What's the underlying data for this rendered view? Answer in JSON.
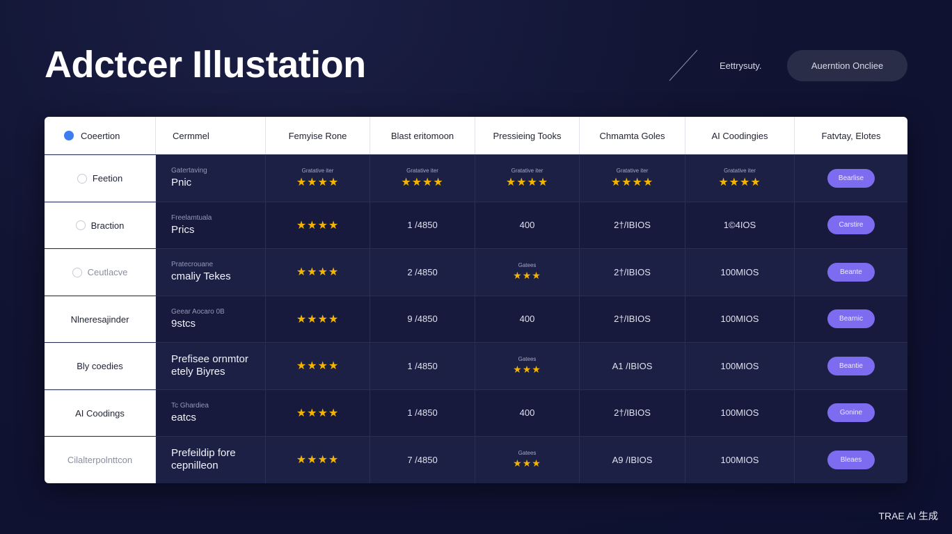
{
  "title": "Adctcer Illustation",
  "header": {
    "link_label": "Eettrysuty.",
    "button_label": "Auerntion Oncliee"
  },
  "table": {
    "columns": [
      "Coeertion",
      "Cermmel",
      "Femyise Rone",
      "Blast eritomoon",
      "Pressieing Tooks",
      "Chmamta Goles",
      "AI Coodingies",
      "Fatvtay, Elotes"
    ],
    "rows": [
      {
        "head": "Feetion",
        "name_small": "Gatertaving",
        "name_big": "Pnic",
        "c2_cap": "Gratative iter",
        "c2_stars": "★★★★",
        "c3_cap": "Gratative iter",
        "c3_stars": "★★★★",
        "c4_cap": "Gratative iter",
        "c4_stars": "★★★★",
        "c5_cap": "Gratative iter",
        "c5_stars": "★★★★",
        "c6_cap": "Gratative iter",
        "c6_stars": "★★★★",
        "action": "Bearlise"
      },
      {
        "head": "Braction",
        "name_small": "Freelamtuala",
        "name_big": "Prics",
        "c2_stars": "★★★★",
        "c3": "1 /4850",
        "c4": "400",
        "c5": "2†/IBIOS",
        "c6": "1©4IOS",
        "action": "Carstire"
      },
      {
        "head": "Ceutlacve",
        "name_small": "Pratecrouane",
        "name_big": "cmaliy Tekes",
        "c2_stars": "★★★★",
        "c3": "2 /4850",
        "c4_cap": "Gatees",
        "c4_stars": "★★★",
        "c5": "2†/IBIOS",
        "c6": "100MIOS",
        "action": "Beante"
      },
      {
        "head": "Nlneresajinder",
        "name_small": "Geear Aocaro 0B",
        "name_big": "9stcs",
        "c2_stars": "★★★★",
        "c3": "9 /4850",
        "c4": "400",
        "c5": "2†/IBIOS",
        "c6": "100MIOS",
        "action": "Bearnic"
      },
      {
        "head": "Bly coedies",
        "name_small": "",
        "name_big": "Prefisee ornmtor\netely Biyres",
        "c2_stars": "★★★★",
        "c3": "1 /4850",
        "c4_cap": "Gatees",
        "c4_stars": "★★★",
        "c5": "A1 /IBIOS",
        "c6": "100MIOS",
        "action": "Beantie"
      },
      {
        "head": "AI Coodings",
        "name_small": "Tc Ghardiea",
        "name_big": "eatcs",
        "c2_stars": "★★★★",
        "c3": "1 /4850",
        "c4": "400",
        "c5": "2†/IBIOS",
        "c6": "100MIOS",
        "action": "Gonine"
      },
      {
        "head": "Cilalterpolnttcon",
        "name_small": "",
        "name_big": "Prefeildip fore\ncepnilleon",
        "c2_stars": "★★★★",
        "c3": "7 /4850",
        "c4_cap": "Gatees",
        "c4_stars": "★★★",
        "c5": "A9 /IBIOS",
        "c6": "100MIOS",
        "action": "Bleaes"
      }
    ]
  },
  "watermark": "TRAE AI 生成",
  "colors": {
    "accent_pill": "#7d6cf0",
    "star": "#f4b400",
    "header_dot": "#3f7cf2"
  }
}
